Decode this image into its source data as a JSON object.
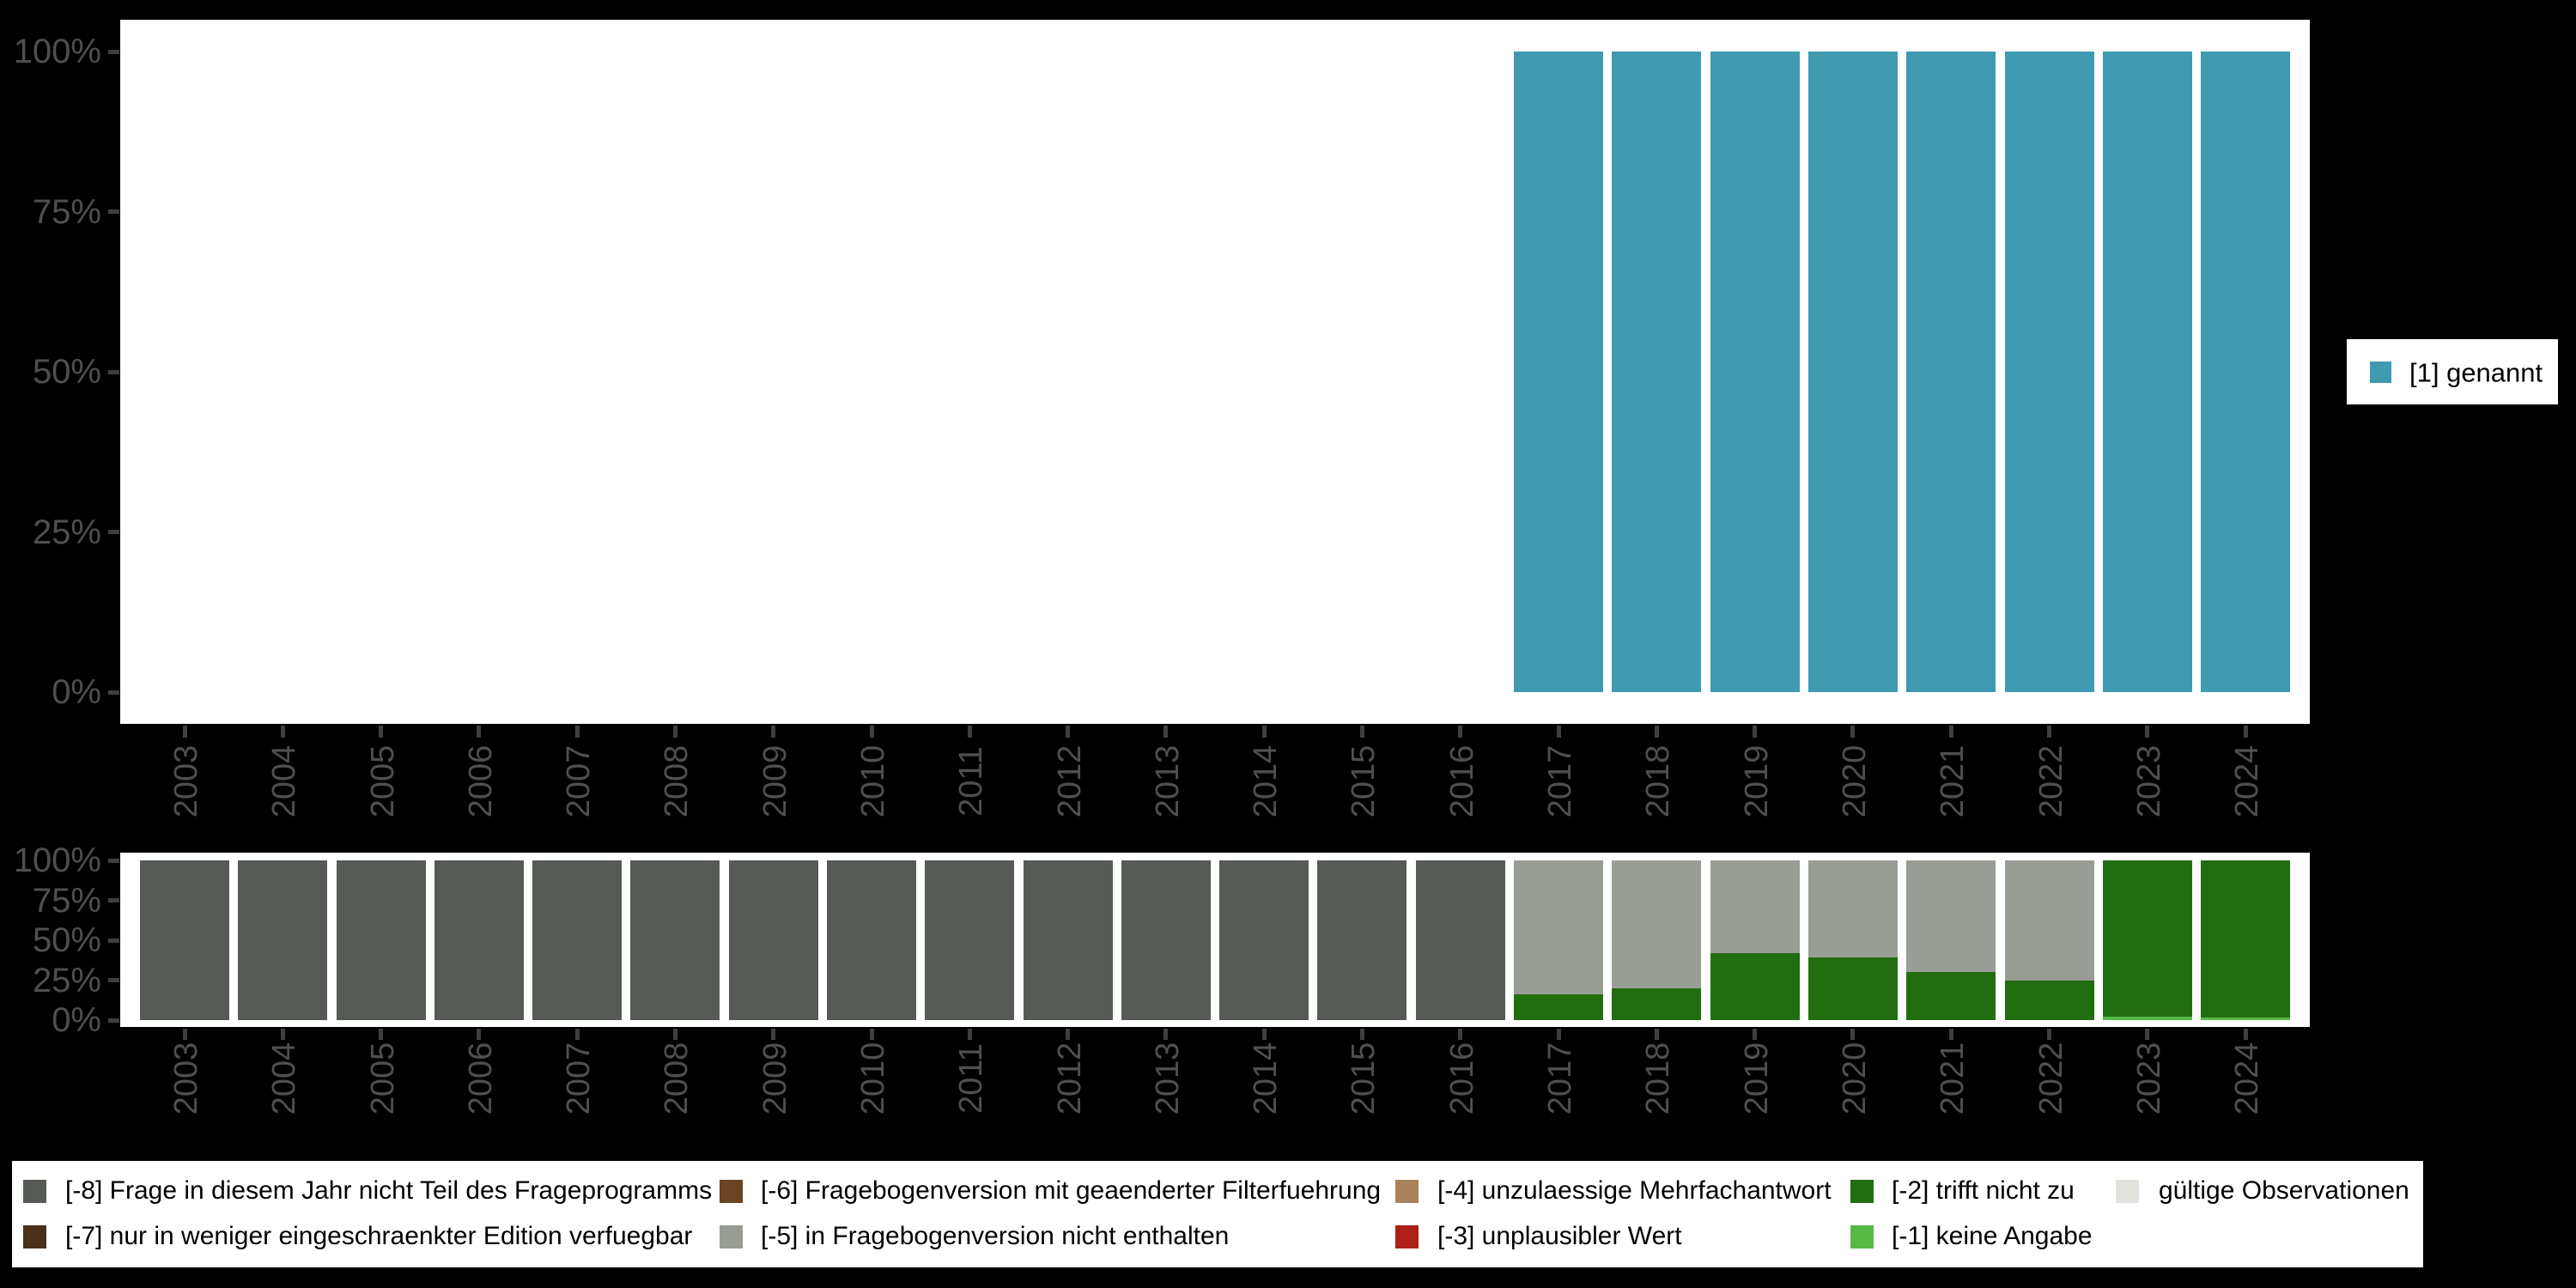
{
  "colors": {
    "background": "#000000",
    "panel": "#ffffff",
    "axis_text": "#4f4f4f",
    "tick_mark": "#3f3f3f",
    "legend_text": "#000000",
    "legend_background": "#ffffff"
  },
  "value_colors": {
    "genannt": "#3f9ab1",
    "m8": "#555b54",
    "m7": "#4a3018",
    "m6": "#6b4423",
    "m5": "#989e95",
    "m4": "#a8825a",
    "m3": "#ad1f17",
    "m2": "#216e10",
    "m1": "#57ba47",
    "valid": "#dfe3dc"
  },
  "side_legend": {
    "items": [
      {
        "label": "[1] genannt",
        "color_key": "genannt"
      }
    ]
  },
  "bottom_legend": {
    "items": [
      {
        "col": 0,
        "row": 0,
        "color_key": "m8",
        "label": "[-8] Frage in diesem Jahr nicht Teil des Frageprogramms"
      },
      {
        "col": 0,
        "row": 1,
        "color_key": "m7",
        "label": "[-7] nur in weniger eingeschraenkter Edition verfuegbar"
      },
      {
        "col": 1,
        "row": 0,
        "color_key": "m6",
        "label": "[-6] Fragebogenversion mit geaenderter Filterfuehrung"
      },
      {
        "col": 1,
        "row": 1,
        "color_key": "m5",
        "label": "[-5] in Fragebogenversion nicht enthalten"
      },
      {
        "col": 2,
        "row": 0,
        "color_key": "m4",
        "label": "[-4] unzulaessige Mehrfachantwort"
      },
      {
        "col": 2,
        "row": 1,
        "color_key": "m3",
        "label": "[-3] unplausibler Wert"
      },
      {
        "col": 3,
        "row": 0,
        "color_key": "m2",
        "label": "[-2] trifft nicht zu"
      },
      {
        "col": 3,
        "row": 1,
        "color_key": "m1",
        "label": "[-1] keine Angabe"
      },
      {
        "col": 4,
        "row": 0,
        "color_key": "valid",
        "label": "gültige Observationen"
      }
    ]
  },
  "chart_data": [
    {
      "type": "bar",
      "title": "",
      "xlabel": "",
      "ylabel": "",
      "categories": [
        "2003",
        "2004",
        "2005",
        "2006",
        "2007",
        "2008",
        "2009",
        "2010",
        "2011",
        "2012",
        "2013",
        "2014",
        "2015",
        "2016",
        "2017",
        "2018",
        "2019",
        "2020",
        "2021",
        "2022",
        "2023",
        "2024"
      ],
      "ytick_labels": [
        "0%",
        "25%",
        "50%",
        "75%",
        "100%"
      ],
      "ylim": [
        0,
        100
      ],
      "grid": false,
      "legend_position": "right",
      "series": [
        {
          "name": "[1] genannt",
          "color_key": "genannt",
          "values": [
            null,
            null,
            null,
            null,
            null,
            null,
            null,
            null,
            null,
            null,
            null,
            null,
            null,
            null,
            100,
            100,
            100,
            100,
            100,
            100,
            100,
            100
          ]
        }
      ]
    },
    {
      "type": "bar",
      "stacked": true,
      "title": "",
      "xlabel": "",
      "ylabel": "",
      "categories": [
        "2003",
        "2004",
        "2005",
        "2006",
        "2007",
        "2008",
        "2009",
        "2010",
        "2011",
        "2012",
        "2013",
        "2014",
        "2015",
        "2016",
        "2017",
        "2018",
        "2019",
        "2020",
        "2021",
        "2022",
        "2023",
        "2024"
      ],
      "ytick_labels": [
        "0%",
        "25%",
        "50%",
        "75%",
        "100%"
      ],
      "ylim": [
        0,
        100
      ],
      "grid": false,
      "legend_position": "bottom",
      "series": [
        {
          "name": "[-1] keine Angabe",
          "color_key": "m1",
          "values": [
            0,
            0,
            0,
            0,
            0,
            0,
            0,
            0,
            0,
            0,
            0,
            0,
            0,
            0,
            0,
            0,
            0,
            0,
            0,
            0,
            2,
            1.5
          ]
        },
        {
          "name": "[-2] trifft nicht zu",
          "color_key": "m2",
          "values": [
            0,
            0,
            0,
            0,
            0,
            0,
            0,
            0,
            0,
            0,
            0,
            0,
            0,
            0,
            16,
            20,
            42,
            39,
            30,
            25,
            98,
            98.5
          ]
        },
        {
          "name": "[-5] in Fragebogenversion nicht enthalten",
          "color_key": "m5",
          "values": [
            0,
            0,
            0,
            0,
            0,
            0,
            0,
            0,
            0,
            0,
            0,
            0,
            0,
            0,
            84,
            80,
            58,
            61,
            70,
            75,
            0,
            0
          ]
        },
        {
          "name": "[-8] Frage in diesem Jahr nicht Teil des Frageprogramms",
          "color_key": "m8",
          "values": [
            100,
            100,
            100,
            100,
            100,
            100,
            100,
            100,
            100,
            100,
            100,
            100,
            100,
            100,
            0,
            0,
            0,
            0,
            0,
            0,
            0,
            0
          ]
        }
      ]
    }
  ]
}
